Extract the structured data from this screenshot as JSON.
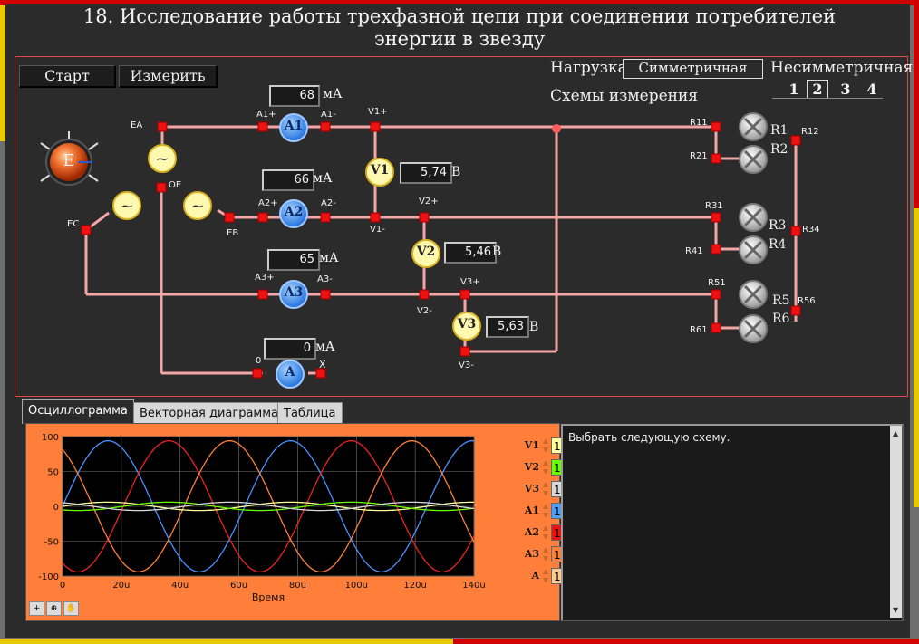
{
  "title_line1": "18. Исследование работы трехфазной цепи при соединении потребителей",
  "title_line2": "энергии в звезду",
  "buttons": {
    "start": "Старт",
    "measure": "Измерить"
  },
  "load": {
    "label": "Нагрузка",
    "symmetric": "Симметричная",
    "asymmetric": "Несимметричная"
  },
  "schemes": {
    "label": "Схемы измерения",
    "items": [
      "1",
      "2",
      "3",
      "4"
    ],
    "selected": "2"
  },
  "source_label": "E",
  "nodes": {
    "ea": "EA",
    "eb": "EB",
    "ec": "EC",
    "oe": "OE",
    "zero": "0",
    "x": "X"
  },
  "ammeters": [
    {
      "name": "A1",
      "value": "68",
      "unit": "мА",
      "plus": "A1+",
      "minus": "A1-"
    },
    {
      "name": "A2",
      "value": "66",
      "unit": "мА",
      "plus": "A2+",
      "minus": "A2-"
    },
    {
      "name": "A3",
      "value": "65",
      "unit": "мА",
      "plus": "A3+",
      "minus": "A3-"
    },
    {
      "name": "A",
      "value": "0",
      "unit": "мА"
    }
  ],
  "voltmeters": [
    {
      "name": "V1",
      "value": "5,74",
      "unit": "В",
      "plus": "V1+",
      "minus": "V1-"
    },
    {
      "name": "V2",
      "value": "5,46",
      "unit": "В",
      "plus": "V2+",
      "minus": "V2-"
    },
    {
      "name": "V3",
      "value": "5,63",
      "unit": "В",
      "plus": "V3+",
      "minus": "V3-"
    }
  ],
  "resistors": {
    "names": [
      "R1",
      "R2",
      "R3",
      "R4",
      "R5",
      "R6"
    ],
    "terminals": [
      "R11",
      "R21",
      "R12",
      "R31",
      "R41",
      "R34",
      "R51",
      "R61",
      "R56"
    ]
  },
  "tabs": [
    "Осциллограмма",
    "Векторная диаграмма",
    "Таблица"
  ],
  "message": "Выбрать следующую схему.",
  "legend": [
    {
      "name": "V1",
      "value": "1",
      "color": "#ffff99"
    },
    {
      "name": "V2",
      "value": "1",
      "color": "#66ff00"
    },
    {
      "name": "V3",
      "value": "1",
      "color": "#d8d8d8"
    },
    {
      "name": "A1",
      "value": "1",
      "color": "#4aa0ff"
    },
    {
      "name": "A2",
      "value": "1",
      "color": "#ee1111"
    },
    {
      "name": "A3",
      "value": "1",
      "color": "#ff7f3a"
    },
    {
      "name": "A",
      "value": "1",
      "color": "#ffc890"
    }
  ],
  "chart_data": {
    "type": "line",
    "xlabel": "Время",
    "x_ticks": [
      "0",
      "20u",
      "40u",
      "60u",
      "80u",
      "100u",
      "120u",
      "140u"
    ],
    "y_ticks": [
      "100",
      "50",
      "0",
      "-50",
      "-100"
    ],
    "xlim": [
      0,
      140
    ],
    "ylim": [
      -100,
      100
    ],
    "grid": true,
    "series": [
      {
        "name": "A1",
        "color": "#4a90ff",
        "amplitude": 94,
        "phase_deg": 0
      },
      {
        "name": "A2",
        "color": "#ee2222",
        "amplitude": 94,
        "phase_deg": 120
      },
      {
        "name": "A3",
        "color": "#ff7f3a",
        "amplitude": 94,
        "phase_deg": 240
      },
      {
        "name": "V1",
        "color": "#ffff99",
        "amplitude": 6,
        "phase_deg": 0
      },
      {
        "name": "V2",
        "color": "#66ff00",
        "amplitude": 6,
        "phase_deg": 120
      },
      {
        "name": "V3",
        "color": "#d8d8d8",
        "amplitude": 6,
        "phase_deg": 240
      }
    ],
    "period_us": 62
  }
}
